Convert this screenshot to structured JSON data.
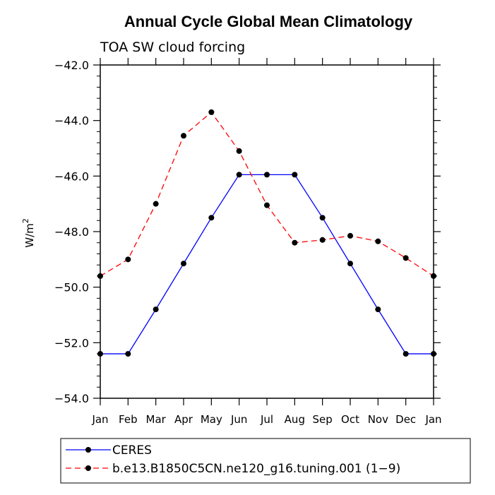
{
  "chart_data": {
    "type": "line",
    "title": "Annual Cycle Global Mean Climatology",
    "subtitle": "TOA SW cloud forcing",
    "ylabel": "W/m",
    "ylabel_superscript": "2",
    "xlabel": "",
    "categories": [
      "Jan",
      "Feb",
      "Mar",
      "Apr",
      "May",
      "Jun",
      "Jul",
      "Aug",
      "Sep",
      "Oct",
      "Nov",
      "Dec",
      "Jan"
    ],
    "ylim": [
      -54.0,
      -42.0
    ],
    "yticks": [
      -54.0,
      -52.0,
      -50.0,
      -48.0,
      -46.0,
      -44.0,
      -42.0
    ],
    "ytick_labels": [
      "−54.0",
      "−52.0",
      "−50.0",
      "−48.0",
      "−46.0",
      "−44.0",
      "−42.0"
    ],
    "grid": false,
    "legend_position": "bottom-left",
    "series": [
      {
        "name": "CERES",
        "color": "#0000ff",
        "dash": "solid",
        "marker": "filled-circle",
        "values": [
          -52.4,
          -52.4,
          -50.8,
          -49.15,
          -47.5,
          -45.95,
          -45.95,
          -45.95,
          -47.5,
          -49.15,
          -50.8,
          -52.4,
          -52.4
        ]
      },
      {
        "name": "b.e13.B1850C5CN.ne120_g16.tuning.001 (1−9)",
        "color": "#ff0000",
        "dash": "dashed",
        "marker": "filled-circle",
        "values": [
          -49.6,
          -49.0,
          -47.0,
          -44.55,
          -43.7,
          -45.1,
          -47.05,
          -48.4,
          -48.3,
          -48.15,
          -48.35,
          -48.95,
          -49.6
        ]
      }
    ]
  }
}
